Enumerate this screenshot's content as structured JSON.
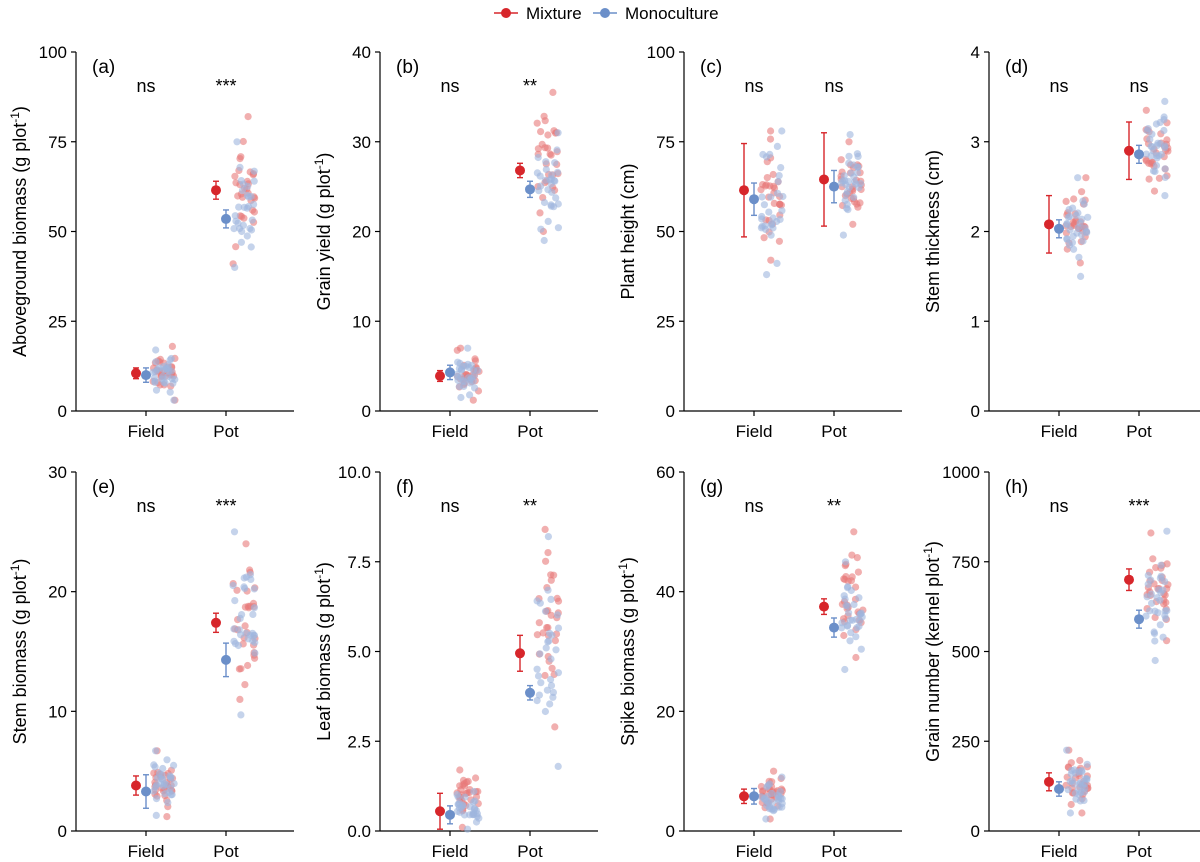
{
  "legend": {
    "items": [
      {
        "label": "Mixture",
        "color": "#d7262b"
      },
      {
        "label": "Monoculture",
        "color": "#6b8fc9"
      }
    ],
    "placement": "top-center"
  },
  "colors": {
    "mixture": "#d7262b",
    "monoculture": "#6b8fc9",
    "mixture_points": "#e8797a",
    "monoculture_points": "#9fb6de"
  },
  "chart_data": [
    {
      "panel": "(a)",
      "type": "scatter",
      "ylabel": "Aboveground biomass (g plot^-1)",
      "ylim": [
        0,
        100
      ],
      "yticks": [
        "0",
        "25",
        "50",
        "75",
        "100"
      ],
      "categories": [
        "Field",
        "Pot"
      ],
      "significance": [
        "ns",
        "***"
      ],
      "series": [
        {
          "name": "Mixture",
          "mean": [
            10.5,
            61.5
          ],
          "err": [
            1.5,
            2.5
          ],
          "raw_range": [
            [
              3,
              18
            ],
            [
              41,
              82
            ]
          ]
        },
        {
          "name": "Monoculture",
          "mean": [
            10.0,
            53.5
          ],
          "err": [
            2.0,
            2.5
          ],
          "raw_range": [
            [
              3,
              17
            ],
            [
              40,
              75
            ]
          ]
        }
      ]
    },
    {
      "panel": "(b)",
      "type": "scatter",
      "ylabel": "Grain yield (g plot^-1)",
      "ylim": [
        0,
        40
      ],
      "yticks": [
        "0",
        "10",
        "20",
        "30",
        "40"
      ],
      "categories": [
        "Field",
        "Pot"
      ],
      "significance": [
        "ns",
        "**"
      ],
      "series": [
        {
          "name": "Mixture",
          "mean": [
            3.9,
            26.8
          ],
          "err": [
            0.6,
            0.8
          ],
          "raw_range": [
            [
              1.2,
              7
            ],
            [
              20,
              35.5
            ]
          ]
        },
        {
          "name": "Monoculture",
          "mean": [
            4.3,
            24.7
          ],
          "err": [
            0.8,
            0.9
          ],
          "raw_range": [
            [
              1.5,
              7
            ],
            [
              19,
              31
            ]
          ]
        }
      ]
    },
    {
      "panel": "(c)",
      "type": "scatter",
      "ylabel": "Plant height (cm)",
      "ylim": [
        0,
        100
      ],
      "yticks": [
        "0",
        "25",
        "50",
        "75",
        "100"
      ],
      "categories": [
        "Field",
        "Pot"
      ],
      "significance": [
        "ns",
        "ns"
      ],
      "series": [
        {
          "name": "Mixture",
          "mean": [
            61.5,
            64.5
          ],
          "err": [
            13.0,
            13.0
          ],
          "raw_range": [
            [
              42,
              78
            ],
            [
              52,
              75
            ]
          ]
        },
        {
          "name": "Monoculture",
          "mean": [
            59.0,
            62.5
          ],
          "err": [
            4.5,
            4.5
          ],
          "raw_range": [
            [
              38,
              78
            ],
            [
              49,
              77
            ]
          ]
        }
      ]
    },
    {
      "panel": "(d)",
      "type": "scatter",
      "ylabel": "Stem thickness (cm)",
      "ylim": [
        0,
        4
      ],
      "yticks": [
        "0",
        "1",
        "2",
        "3",
        "4"
      ],
      "categories": [
        "Field",
        "Pot"
      ],
      "significance": [
        "ns",
        "ns"
      ],
      "series": [
        {
          "name": "Mixture",
          "mean": [
            2.08,
            2.9
          ],
          "err": [
            0.32,
            0.32
          ],
          "raw_range": [
            [
              1.65,
              2.6
            ],
            [
              2.45,
              3.35
            ]
          ]
        },
        {
          "name": "Monoculture",
          "mean": [
            2.03,
            2.86
          ],
          "err": [
            0.1,
            0.1
          ],
          "raw_range": [
            [
              1.5,
              2.6
            ],
            [
              2.4,
              3.45
            ]
          ]
        }
      ]
    },
    {
      "panel": "(e)",
      "type": "scatter",
      "ylabel": "Stem biomass (g plot^-1)",
      "ylim": [
        0,
        30
      ],
      "yticks": [
        "0",
        "10",
        "20",
        "30"
      ],
      "categories": [
        "Field",
        "Pot"
      ],
      "significance": [
        "ns",
        "***"
      ],
      "series": [
        {
          "name": "Mixture",
          "mean": [
            3.8,
            17.4
          ],
          "err": [
            0.8,
            0.8
          ],
          "raw_range": [
            [
              1.2,
              6.7
            ],
            [
              11,
              24
            ]
          ]
        },
        {
          "name": "Monoculture",
          "mean": [
            3.3,
            14.3
          ],
          "err": [
            1.4,
            1.4
          ],
          "raw_range": [
            [
              1.3,
              6.7
            ],
            [
              9.7,
              25
            ]
          ]
        }
      ]
    },
    {
      "panel": "(f)",
      "type": "scatter",
      "ylabel": "Leaf biomass (g plot^-1)",
      "ylim": [
        0,
        10
      ],
      "yticks": [
        "0.0",
        "2.5",
        "5.0",
        "7.5",
        "10.0"
      ],
      "categories": [
        "Field",
        "Pot"
      ],
      "significance": [
        "ns",
        "**"
      ],
      "series": [
        {
          "name": "Mixture",
          "mean": [
            0.55,
            4.95
          ],
          "err": [
            0.5,
            0.5
          ],
          "raw_range": [
            [
              0.1,
              1.7
            ],
            [
              2.9,
              8.4
            ]
          ]
        },
        {
          "name": "Monoculture",
          "mean": [
            0.45,
            3.85
          ],
          "err": [
            0.25,
            0.2
          ],
          "raw_range": [
            [
              0.05,
              1.1
            ],
            [
              1.8,
              8.2
            ]
          ]
        }
      ]
    },
    {
      "panel": "(g)",
      "type": "scatter",
      "ylabel": "Spike biomass (g plot^-1)",
      "ylim": [
        0,
        60
      ],
      "yticks": [
        "0",
        "20",
        "40",
        "60"
      ],
      "categories": [
        "Field",
        "Pot"
      ],
      "significance": [
        "ns",
        "**"
      ],
      "series": [
        {
          "name": "Mixture",
          "mean": [
            5.8,
            37.5
          ],
          "err": [
            1.2,
            1.3
          ],
          "raw_range": [
            [
              2,
              10
            ],
            [
              29,
              50
            ]
          ]
        },
        {
          "name": "Monoculture",
          "mean": [
            5.8,
            34.0
          ],
          "err": [
            1.3,
            1.6
          ],
          "raw_range": [
            [
              2,
              9
            ],
            [
              27,
              45
            ]
          ]
        }
      ]
    },
    {
      "panel": "(h)",
      "type": "scatter",
      "ylabel": "Grain number (kernel plot^-1)",
      "ylim": [
        0,
        1000
      ],
      "yticks": [
        "0",
        "250",
        "500",
        "750",
        "1000"
      ],
      "categories": [
        "Field",
        "Pot"
      ],
      "significance": [
        "ns",
        "***"
      ],
      "series": [
        {
          "name": "Mixture",
          "mean": [
            137,
            700
          ],
          "err": [
            25,
            30
          ],
          "raw_range": [
            [
              50,
              225
            ],
            [
              530,
              830
            ]
          ]
        },
        {
          "name": "Monoculture",
          "mean": [
            117,
            590
          ],
          "err": [
            20,
            25
          ],
          "raw_range": [
            [
              50,
              225
            ],
            [
              475,
              835
            ]
          ]
        }
      ]
    }
  ]
}
